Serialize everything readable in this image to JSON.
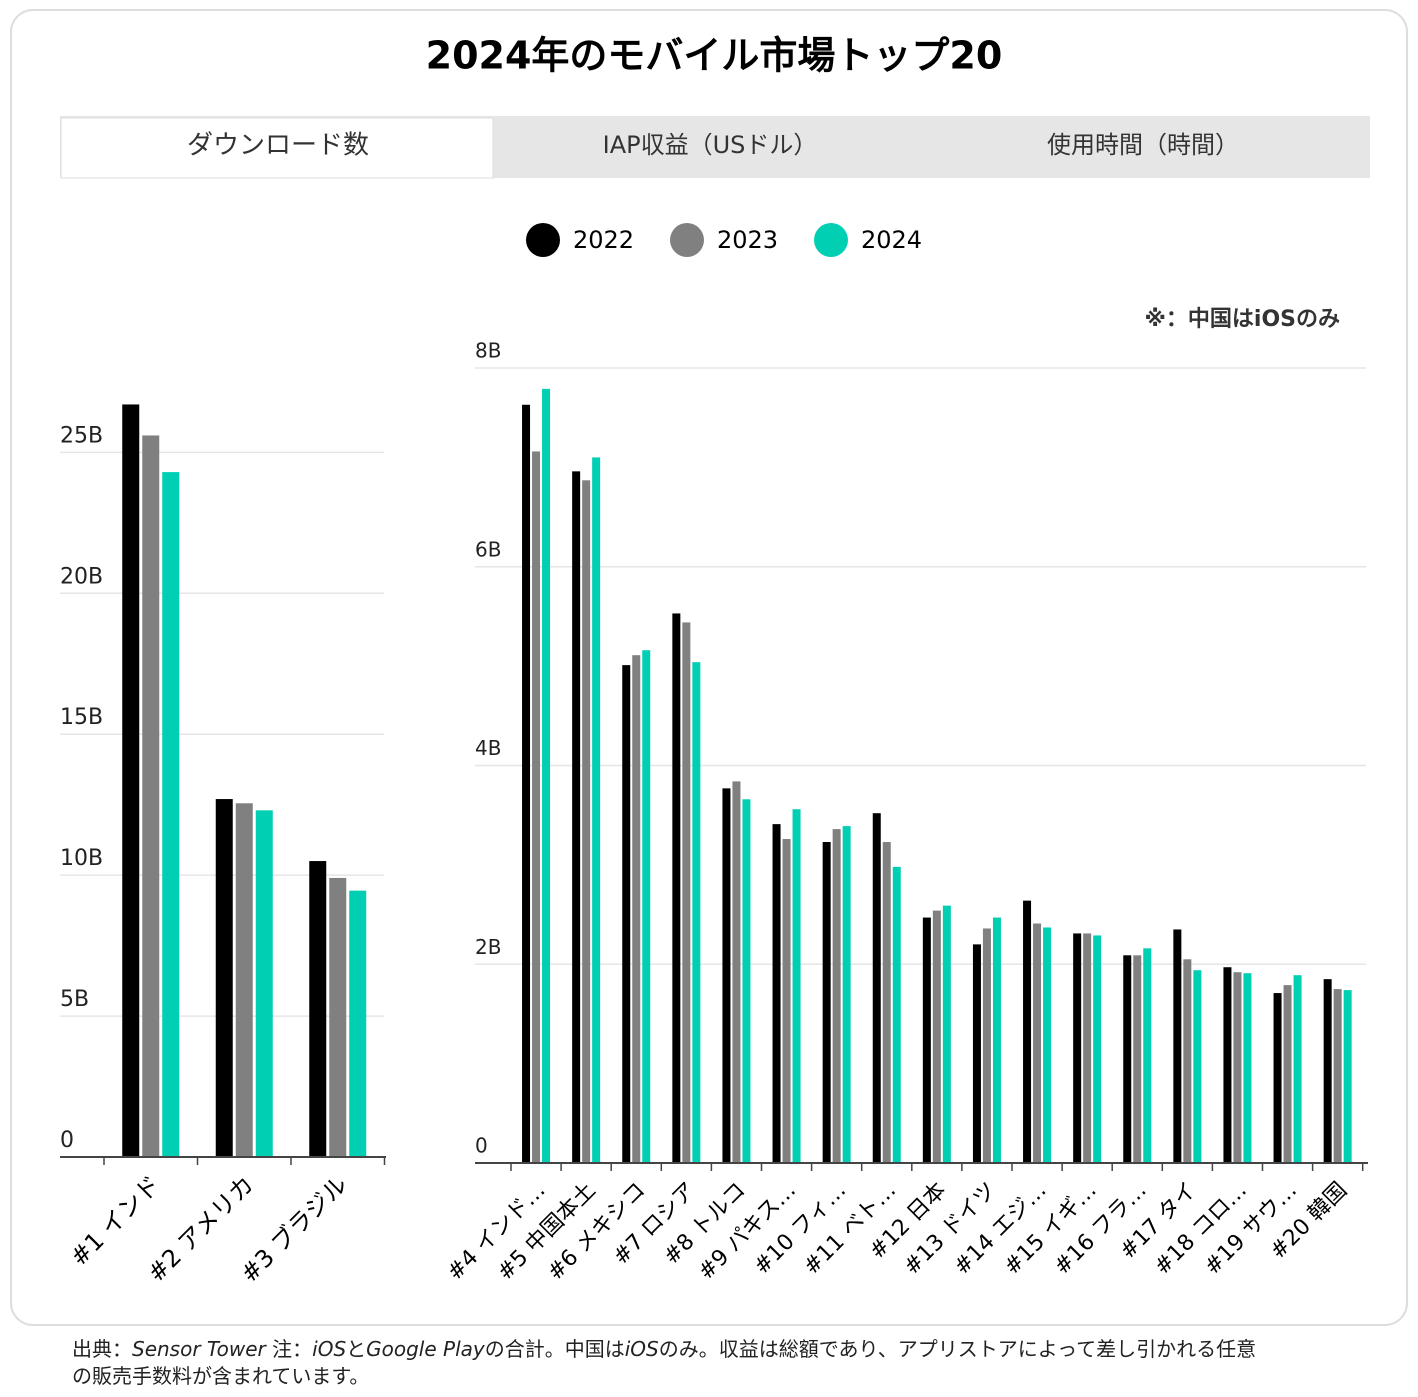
{
  "title": "2024年のモバイル市場トップ20",
  "tabs": [
    "ダウンロード数",
    "IAP収益（USドル）",
    "使用時間（時間）"
  ],
  "note": "※：中国はiOSのみ",
  "footer": [
    "出典：",
    "Sensor Tower",
    " 注：",
    "iOS",
    "と",
    "Google Play",
    "の合計。中国は",
    "iOS",
    "のみ。収益は総額であり、アプリストアによって差し引かれる任意の販売手数料が含まれています。"
  ],
  "chart_data": [
    {
      "type": "bar",
      "categories": [
        "#1 インド",
        "#2 アメリカ",
        "#3 ブラジル"
      ],
      "series": [
        {
          "name": "2022",
          "color": "#000000",
          "values": [
            26.7,
            12.7,
            10.5
          ]
        },
        {
          "name": "2023",
          "color": "#808080",
          "values": [
            25.6,
            12.55,
            9.9
          ]
        },
        {
          "name": "2024",
          "color": "#00cfb4",
          "values": [
            24.3,
            12.3,
            9.45
          ]
        }
      ],
      "ylim": [
        0,
        27
      ],
      "yticks": [
        {
          "value": 0,
          "label": "0"
        },
        {
          "value": 5,
          "label": "5B"
        },
        {
          "value": 10,
          "label": "10B"
        },
        {
          "value": 15,
          "label": "15B"
        },
        {
          "value": 20,
          "label": "20B"
        },
        {
          "value": 25,
          "label": "25B"
        }
      ],
      "grid": true
    },
    {
      "type": "bar",
      "categories": [
        "#4 インド…",
        "#5 中国本土",
        "#6 メキシコ",
        "#7 ロシア",
        "#8 トルコ",
        "#9 パキス…",
        "#10 フィ…",
        "#11 ベト…",
        "#12 日本",
        "#13 ドイツ",
        "#14 エジ…",
        "#15 イギ…",
        "#16 フラ…",
        "#17 タイ",
        "#18 コロ…",
        "#19 サウ…",
        "#20 韓国"
      ],
      "series": [
        {
          "name": "2022",
          "color": "#000000",
          "values": [
            7.63,
            6.96,
            5.01,
            5.53,
            3.77,
            3.41,
            3.23,
            3.52,
            2.47,
            2.2,
            2.64,
            2.31,
            2.09,
            2.35,
            1.97,
            1.71,
            1.85
          ]
        },
        {
          "name": "2023",
          "color": "#808080",
          "values": [
            7.16,
            6.87,
            5.11,
            5.44,
            3.84,
            3.26,
            3.36,
            3.23,
            2.54,
            2.36,
            2.41,
            2.31,
            2.09,
            2.05,
            1.92,
            1.79,
            1.75
          ]
        },
        {
          "name": "2024",
          "color": "#00cfb4",
          "values": [
            7.79,
            7.1,
            5.16,
            5.04,
            3.66,
            3.56,
            3.39,
            2.98,
            2.59,
            2.47,
            2.37,
            2.29,
            2.16,
            1.94,
            1.91,
            1.89,
            1.74
          ]
        }
      ],
      "ylim": [
        0,
        8
      ],
      "yticks": [
        {
          "value": 0,
          "label": "0"
        },
        {
          "value": 2,
          "label": "2B"
        },
        {
          "value": 4,
          "label": "4B"
        },
        {
          "value": 6,
          "label": "6B"
        },
        {
          "value": 8,
          "label": "8B"
        }
      ],
      "grid": true
    }
  ]
}
